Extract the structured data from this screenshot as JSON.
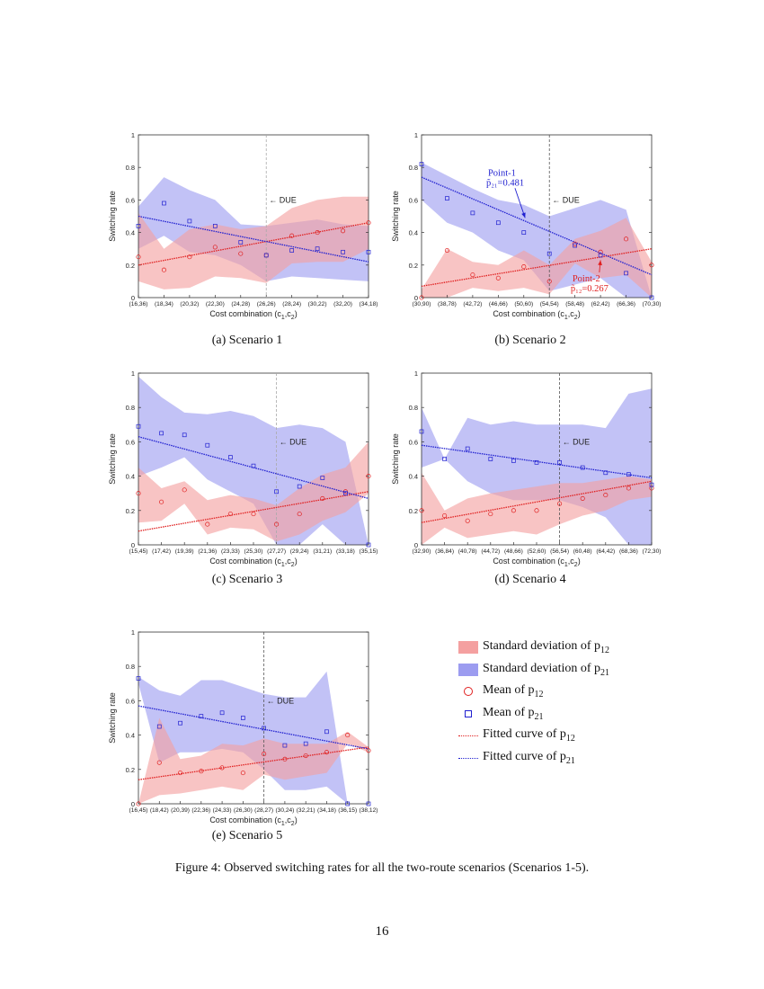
{
  "figure": {
    "caption": "Figure 4: Observed switching rates for all the two-route scenarios (Scenarios 1-5).",
    "page_number": "16"
  },
  "colors": {
    "p12_fill": "#f4a0a0",
    "p21_fill": "#9c9cf0",
    "p12_mark": "#e02020",
    "p21_mark": "#2020d0"
  },
  "legend": {
    "items": [
      {
        "kind": "swatch-red",
        "text": "Standard deviation of p",
        "sub": "12"
      },
      {
        "kind": "swatch-blue",
        "text": "Standard deviation of p",
        "sub": "21"
      },
      {
        "kind": "circle",
        "text": "Mean of p",
        "sub": "12"
      },
      {
        "kind": "square",
        "text": "Mean of p",
        "sub": "21"
      },
      {
        "kind": "line-red",
        "text": "Fitted curve of p",
        "sub": "12"
      },
      {
        "kind": "line-blue",
        "text": "Fitted curve of p",
        "sub": "21"
      }
    ]
  },
  "chart_data": [
    {
      "type": "area",
      "id": "s1",
      "caption": "(a)  Scenario 1",
      "xlabel": "Cost combination (c",
      "xlabel_sub1": "1",
      "xlabel_mid": ",c",
      "xlabel_sub2": "2",
      "xlabel_end": ")",
      "ylabel": "Switching rate",
      "ylim": [
        0,
        1
      ],
      "yticks": [
        "0",
        "0.2",
        "0.4",
        "0.6",
        "0.8",
        "1"
      ],
      "categories": [
        "(16,36)",
        "(18,34)",
        "(20,32)",
        "(22,30)",
        "(24,28)",
        "(26,26)",
        "(28,24)",
        "(30,22)",
        "(32,20)",
        "(34,18)"
      ],
      "due": {
        "x": 5,
        "label": "← DUE",
        "label_y": 0.6,
        "style": "light"
      },
      "p12": {
        "mean": [
          0.25,
          0.17,
          0.25,
          0.31,
          0.27,
          0.26,
          0.38,
          0.4,
          0.41,
          0.46
        ],
        "upper": [
          0.52,
          0.3,
          0.42,
          0.45,
          0.42,
          0.44,
          0.55,
          0.6,
          0.62,
          0.62
        ],
        "lower": [
          0.1,
          0.05,
          0.06,
          0.13,
          0.12,
          0.09,
          0.21,
          0.22,
          0.22,
          0.3
        ],
        "fit": [
          0.2,
          0.46
        ]
      },
      "p21": {
        "mean": [
          0.44,
          0.58,
          0.47,
          0.44,
          0.34,
          0.26,
          0.29,
          0.3,
          0.28,
          0.28
        ],
        "upper": [
          0.56,
          0.74,
          0.66,
          0.6,
          0.45,
          0.44,
          0.46,
          0.48,
          0.45,
          0.44
        ],
        "lower": [
          0.3,
          0.38,
          0.28,
          0.26,
          0.2,
          0.1,
          0.13,
          0.12,
          0.11,
          0.1
        ],
        "fit": [
          0.5,
          0.22
        ]
      },
      "annotations": []
    },
    {
      "type": "area",
      "id": "s2",
      "caption": "(b)  Scenario 2",
      "xlabel": "Cost combination (c",
      "xlabel_sub1": "1",
      "xlabel_mid": ",c",
      "xlabel_sub2": "2",
      "xlabel_end": ")",
      "ylabel": "Switching rate",
      "ylim": [
        0,
        1
      ],
      "yticks": [
        "0",
        "0.2",
        "0.4",
        "0.6",
        "0.8",
        "1"
      ],
      "categories": [
        "(30,90)",
        "(38,78)",
        "(42,72)",
        "(46,66)",
        "(50,60)",
        "(54,54)",
        "(58,48)",
        "(62,42)",
        "(66,36)",
        "(70,30)"
      ],
      "due": {
        "x": 5,
        "label": "← DUE",
        "label_y": 0.6,
        "style": "dark"
      },
      "p12": {
        "mean": [
          0.0,
          0.29,
          0.14,
          0.12,
          0.19,
          0.1,
          0.33,
          0.28,
          0.36,
          0.2
        ],
        "upper": [
          0.05,
          0.3,
          0.22,
          0.2,
          0.29,
          0.2,
          0.36,
          0.41,
          0.49,
          0.22
        ],
        "lower": [
          0.0,
          0.0,
          0.06,
          0.04,
          0.06,
          0.02,
          0.21,
          0.12,
          0.14,
          0.0
        ],
        "fit": [
          0.07,
          0.3
        ]
      },
      "p21": {
        "mean": [
          0.82,
          0.61,
          0.52,
          0.46,
          0.4,
          0.27,
          0.32,
          0.26,
          0.15,
          0.0
        ],
        "upper": [
          0.83,
          0.75,
          0.67,
          0.6,
          0.57,
          0.5,
          0.55,
          0.6,
          0.54,
          0.0
        ],
        "lower": [
          0.6,
          0.46,
          0.4,
          0.29,
          0.23,
          0.04,
          0.08,
          0.12,
          0.0,
          0.0
        ],
        "fit": [
          0.74,
          0.14
        ]
      },
      "annotations": [
        {
          "series": "p21",
          "label": "Point-1",
          "value": "p̃₂₁=0.481",
          "tx": 2.6,
          "ty": 0.75,
          "ax": 4.05,
          "ay": 0.49
        },
        {
          "series": "p12",
          "label": "Point-2",
          "value": "p̃₁₂=0.267",
          "tx": 5.9,
          "ty": 0.1,
          "ax": 7.0,
          "ay": 0.23
        }
      ]
    },
    {
      "type": "area",
      "id": "s3",
      "caption": "(c)  Scenario 3",
      "xlabel": "Cost combination (c",
      "xlabel_sub1": "1",
      "xlabel_mid": ",c",
      "xlabel_sub2": "2",
      "xlabel_end": ")",
      "ylabel": "Switching rate",
      "ylim": [
        0,
        1
      ],
      "yticks": [
        "0",
        "0.2",
        "0.4",
        "0.6",
        "0.8",
        "1"
      ],
      "categories": [
        "(15,45)",
        "(17,42)",
        "(19,39)",
        "(21,36)",
        "(23,33)",
        "(25,30)",
        "(27,27)",
        "(29,24)",
        "(31,21)",
        "(33,18)",
        "(35,15)"
      ],
      "due": {
        "x": 6,
        "label": "← DUE",
        "label_y": 0.6,
        "style": "light"
      },
      "p12": {
        "mean": [
          0.3,
          0.25,
          0.32,
          0.12,
          0.18,
          0.18,
          0.12,
          0.18,
          0.27,
          0.31,
          0.4
        ],
        "upper": [
          0.45,
          0.33,
          0.37,
          0.26,
          0.29,
          0.27,
          0.23,
          0.33,
          0.41,
          0.45,
          0.6
        ],
        "lower": [
          0.13,
          0.14,
          0.24,
          0.06,
          0.1,
          0.09,
          0.02,
          0.06,
          0.14,
          0.19,
          0.3
        ],
        "fit": [
          0.08,
          0.31
        ]
      },
      "p21": {
        "mean": [
          0.69,
          0.65,
          0.64,
          0.58,
          0.51,
          0.46,
          0.31,
          0.34,
          0.39,
          0.3,
          0.0
        ],
        "upper": [
          0.98,
          0.86,
          0.77,
          0.76,
          0.78,
          0.75,
          0.68,
          0.7,
          0.68,
          0.6,
          0.0
        ],
        "lower": [
          0.4,
          0.45,
          0.51,
          0.38,
          0.31,
          0.24,
          0.0,
          0.0,
          0.12,
          0.0,
          0.0
        ],
        "fit": [
          0.63,
          0.27
        ]
      },
      "annotations": []
    },
    {
      "type": "area",
      "id": "s4",
      "caption": "(d)  Scenario 4",
      "xlabel": "Cost combination (c",
      "xlabel_sub1": "1",
      "xlabel_mid": ",c",
      "xlabel_sub2": "2",
      "xlabel_end": ")",
      "ylabel": "Switching rate",
      "ylim": [
        0,
        1
      ],
      "yticks": [
        "0",
        "0.2",
        "0.4",
        "0.6",
        "0.8",
        "1"
      ],
      "categories": [
        "(32,90)",
        "(36,84)",
        "(40,78)",
        "(44,72)",
        "(48,66)",
        "(52,60)",
        "(56,54)",
        "(60,48)",
        "(64,42)",
        "(68,36)",
        "(72,30)"
      ],
      "due": {
        "x": 6,
        "label": "← DUE",
        "label_y": 0.6,
        "style": "dark"
      },
      "p12": {
        "mean": [
          0.2,
          0.17,
          0.14,
          0.18,
          0.2,
          0.2,
          0.24,
          0.27,
          0.29,
          0.33,
          0.33
        ],
        "upper": [
          0.42,
          0.2,
          0.27,
          0.3,
          0.32,
          0.34,
          0.36,
          0.36,
          0.38,
          0.4,
          0.38
        ],
        "lower": [
          0.0,
          0.1,
          0.04,
          0.06,
          0.08,
          0.06,
          0.12,
          0.17,
          0.2,
          0.26,
          0.28
        ],
        "fit": [
          0.13,
          0.37
        ]
      },
      "p21": {
        "mean": [
          0.66,
          0.5,
          0.56,
          0.5,
          0.49,
          0.48,
          0.48,
          0.45,
          0.42,
          0.41,
          0.35
        ],
        "upper": [
          0.8,
          0.5,
          0.74,
          0.7,
          0.72,
          0.7,
          0.7,
          0.7,
          0.68,
          0.88,
          0.91
        ],
        "lower": [
          0.45,
          0.5,
          0.37,
          0.3,
          0.26,
          0.26,
          0.26,
          0.22,
          0.16,
          0.0,
          0.0
        ],
        "fit": [
          0.58,
          0.39
        ]
      },
      "annotations": []
    },
    {
      "type": "area",
      "id": "s5",
      "caption": "(e)  Scenario 5",
      "xlabel": "Cost combination (c",
      "xlabel_sub1": "1",
      "xlabel_mid": ",c",
      "xlabel_sub2": "2",
      "xlabel_end": ")",
      "ylabel": "Switching rate",
      "ylim": [
        0,
        1
      ],
      "yticks": [
        "0",
        "0.2",
        "0.4",
        "0.6",
        "0.8",
        "1"
      ],
      "categories": [
        "(16,45)",
        "(18,42)",
        "(20,39)",
        "(22,36)",
        "(24,33)",
        "(26,30)",
        "(28,27)",
        "(30,24)",
        "(32,21)",
        "(34,18)",
        "(36,15)",
        "(38,12)"
      ],
      "due": {
        "x": 6,
        "label": "← DUE",
        "label_y": 0.6,
        "style": "dark"
      },
      "p12": {
        "mean": [
          0.0,
          0.24,
          0.18,
          0.19,
          0.21,
          0.18,
          0.29,
          0.26,
          0.28,
          0.3,
          0.4,
          0.31
        ],
        "upper": [
          0.0,
          0.5,
          0.26,
          0.28,
          0.35,
          0.34,
          0.38,
          0.35,
          0.35,
          0.35,
          0.42,
          0.33
        ],
        "lower": [
          0.0,
          0.05,
          0.06,
          0.08,
          0.1,
          0.08,
          0.17,
          0.14,
          0.16,
          0.18,
          0.35,
          0.3
        ],
        "fit": [
          0.14,
          0.33
        ]
      },
      "p21": {
        "mean": [
          0.73,
          0.45,
          0.47,
          0.51,
          0.53,
          0.5,
          0.44,
          0.34,
          0.35,
          0.42,
          0.0,
          0.0
        ],
        "upper": [
          0.74,
          0.66,
          0.63,
          0.72,
          0.72,
          0.68,
          0.64,
          0.62,
          0.62,
          0.77,
          0.0,
          0.0
        ],
        "lower": [
          0.7,
          0.24,
          0.3,
          0.3,
          0.32,
          0.3,
          0.2,
          0.08,
          0.08,
          0.1,
          0.0,
          0.0
        ],
        "fit": [
          0.57,
          0.32
        ]
      },
      "annotations": []
    }
  ]
}
